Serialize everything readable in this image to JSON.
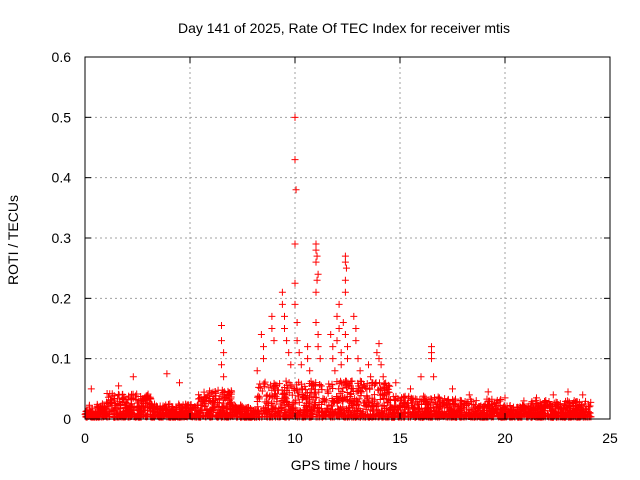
{
  "chart_data": {
    "type": "scatter",
    "title": "Day 141 of 2025, Rate Of TEC Index for receiver mtis",
    "xlabel": "GPS time / hours",
    "ylabel": "ROTI / TECUs",
    "xlim": [
      0,
      25
    ],
    "ylim": [
      0,
      0.6
    ],
    "x_ticks": [
      "0",
      "5",
      "10",
      "15",
      "20",
      "25"
    ],
    "y_ticks": [
      "0",
      "0.1",
      "0.2",
      "0.3",
      "0.4",
      "0.5",
      "0.6"
    ],
    "grid": true,
    "marker": "plus",
    "series_color": "#ff0000",
    "series": [
      {
        "points": [
          [
            0.3,
            0.05
          ],
          [
            1.6,
            0.055
          ],
          [
            2.3,
            0.07
          ],
          [
            3.9,
            0.075
          ],
          [
            4.5,
            0.06
          ],
          [
            6.5,
            0.155
          ],
          [
            6.5,
            0.13
          ],
          [
            6.6,
            0.11
          ],
          [
            6.5,
            0.09
          ],
          [
            6.6,
            0.07
          ],
          [
            8.2,
            0.08
          ],
          [
            8.4,
            0.14
          ],
          [
            8.5,
            0.12
          ],
          [
            8.5,
            0.1
          ],
          [
            8.9,
            0.17
          ],
          [
            8.9,
            0.15
          ],
          [
            9.0,
            0.13
          ],
          [
            9.4,
            0.21
          ],
          [
            9.4,
            0.19
          ],
          [
            9.5,
            0.17
          ],
          [
            9.5,
            0.15
          ],
          [
            9.6,
            0.13
          ],
          [
            9.7,
            0.11
          ],
          [
            9.8,
            0.09
          ],
          [
            10.0,
            0.5
          ],
          [
            10.0,
            0.43
          ],
          [
            10.05,
            0.38
          ],
          [
            10.0,
            0.29
          ],
          [
            10.0,
            0.225
          ],
          [
            10.0,
            0.19
          ],
          [
            10.1,
            0.16
          ],
          [
            10.1,
            0.13
          ],
          [
            10.2,
            0.11
          ],
          [
            10.3,
            0.09
          ],
          [
            10.6,
            0.12
          ],
          [
            10.6,
            0.1
          ],
          [
            10.7,
            0.08
          ],
          [
            11.0,
            0.29
          ],
          [
            11.0,
            0.28
          ],
          [
            11.05,
            0.27
          ],
          [
            11.0,
            0.26
          ],
          [
            11.1,
            0.24
          ],
          [
            11.05,
            0.23
          ],
          [
            11.0,
            0.21
          ],
          [
            11.0,
            0.16
          ],
          [
            11.1,
            0.14
          ],
          [
            11.1,
            0.12
          ],
          [
            11.2,
            0.1
          ],
          [
            11.7,
            0.14
          ],
          [
            11.8,
            0.12
          ],
          [
            11.8,
            0.1
          ],
          [
            11.9,
            0.08
          ],
          [
            12.1,
            0.19
          ],
          [
            12.0,
            0.17
          ],
          [
            12.1,
            0.15
          ],
          [
            12.0,
            0.13
          ],
          [
            12.2,
            0.11
          ],
          [
            12.2,
            0.09
          ],
          [
            12.4,
            0.27
          ],
          [
            12.4,
            0.26
          ],
          [
            12.45,
            0.25
          ],
          [
            12.4,
            0.23
          ],
          [
            12.4,
            0.21
          ],
          [
            12.3,
            0.16
          ],
          [
            12.4,
            0.14
          ],
          [
            12.5,
            0.12
          ],
          [
            12.5,
            0.1
          ],
          [
            12.8,
            0.17
          ],
          [
            12.9,
            0.15
          ],
          [
            12.9,
            0.13
          ],
          [
            13.0,
            0.1
          ],
          [
            13.1,
            0.08
          ],
          [
            13.5,
            0.09
          ],
          [
            13.6,
            0.07
          ],
          [
            14.0,
            0.125
          ],
          [
            13.9,
            0.11
          ],
          [
            14.0,
            0.1
          ],
          [
            14.1,
            0.09
          ],
          [
            14.2,
            0.07
          ],
          [
            14.8,
            0.06
          ],
          [
            15.5,
            0.05
          ],
          [
            16.0,
            0.07
          ],
          [
            16.5,
            0.12
          ],
          [
            16.5,
            0.11
          ],
          [
            16.5,
            0.1
          ],
          [
            16.6,
            0.07
          ],
          [
            17.5,
            0.05
          ],
          [
            18.3,
            0.04
          ],
          [
            19.2,
            0.045
          ],
          [
            20.0,
            0.035
          ],
          [
            20.9,
            0.03
          ],
          [
            21.5,
            0.035
          ],
          [
            22.3,
            0.04
          ],
          [
            23.0,
            0.045
          ],
          [
            23.7,
            0.04
          ]
        ]
      }
    ]
  }
}
